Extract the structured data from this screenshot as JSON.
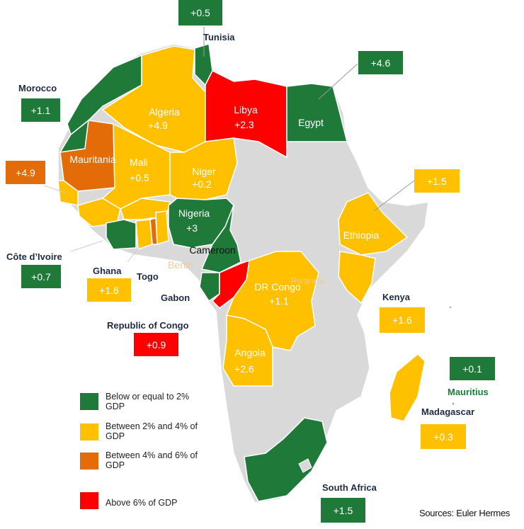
{
  "colors": {
    "green": "#1f7a3a",
    "yellow": "#ffc000",
    "orange": "#e36c09",
    "red": "#ff0000",
    "grey": "#d9d9d9",
    "white_label": "#ffffff",
    "light_label": "#f5c89a",
    "mauritius_label": "#1f7a3a"
  },
  "map_labels": {
    "algeria": "Algeria",
    "algeria_value": "+4.9",
    "libya": "Libya",
    "libya_value": "+2.3",
    "egypt": "Egypt",
    "mauritania": "Mauritania",
    "mali": "Mali",
    "mali_value": "+0.5",
    "niger": "Niger",
    "niger_value": "+0.2",
    "nigeria": "Nigeria",
    "nigeria_value": "+3",
    "cameroon": "Cameroon",
    "benin": "Benin",
    "rwanda": "Rwanda",
    "drc": "DR Congo",
    "drc_value": "+1.1",
    "ethiopia": "Ethiopia",
    "angola": "Angola",
    "angola_value": "+2.6"
  },
  "callouts": {
    "tunisia": {
      "name": "Tunisia",
      "value": "+0.5"
    },
    "egypt": {
      "value": "+4.6"
    },
    "morocco": {
      "name": "Morocco",
      "value": "+1.1"
    },
    "mauritania": {
      "value": "+4.9"
    },
    "ethiopia": {
      "value": "+1.5"
    },
    "cote_divoire": {
      "name": "Côte d’Ivoire",
      "value": "+0.7"
    },
    "ghana": {
      "name": "Ghana",
      "value": "+1.6"
    },
    "togo": {
      "name": "Togo"
    },
    "gabon": {
      "name": "Gabon"
    },
    "kenya": {
      "name": "Kenya",
      "value": "+1.6"
    },
    "republic_of_congo": {
      "name": "Republic of Congo",
      "value": "+0.9"
    },
    "mauritius": {
      "name": "Mauritius",
      "value": "+0.1"
    },
    "madagascar": {
      "name": "Madagascar",
      "value": "+0.3"
    },
    "south_africa": {
      "name": "South Africa",
      "value": "+1.5"
    }
  },
  "legend": {
    "green_line1": "Below or equal to 2%",
    "green_line2": "GDP",
    "yellow_line1": "Between 2% and 4% of",
    "yellow_line2": "GDP",
    "orange_line1": "Between 4% and 6% of",
    "orange_line2": "GDP",
    "red_line1": "Above 6% of GDP"
  },
  "source": "Sources: Euler Hermes"
}
